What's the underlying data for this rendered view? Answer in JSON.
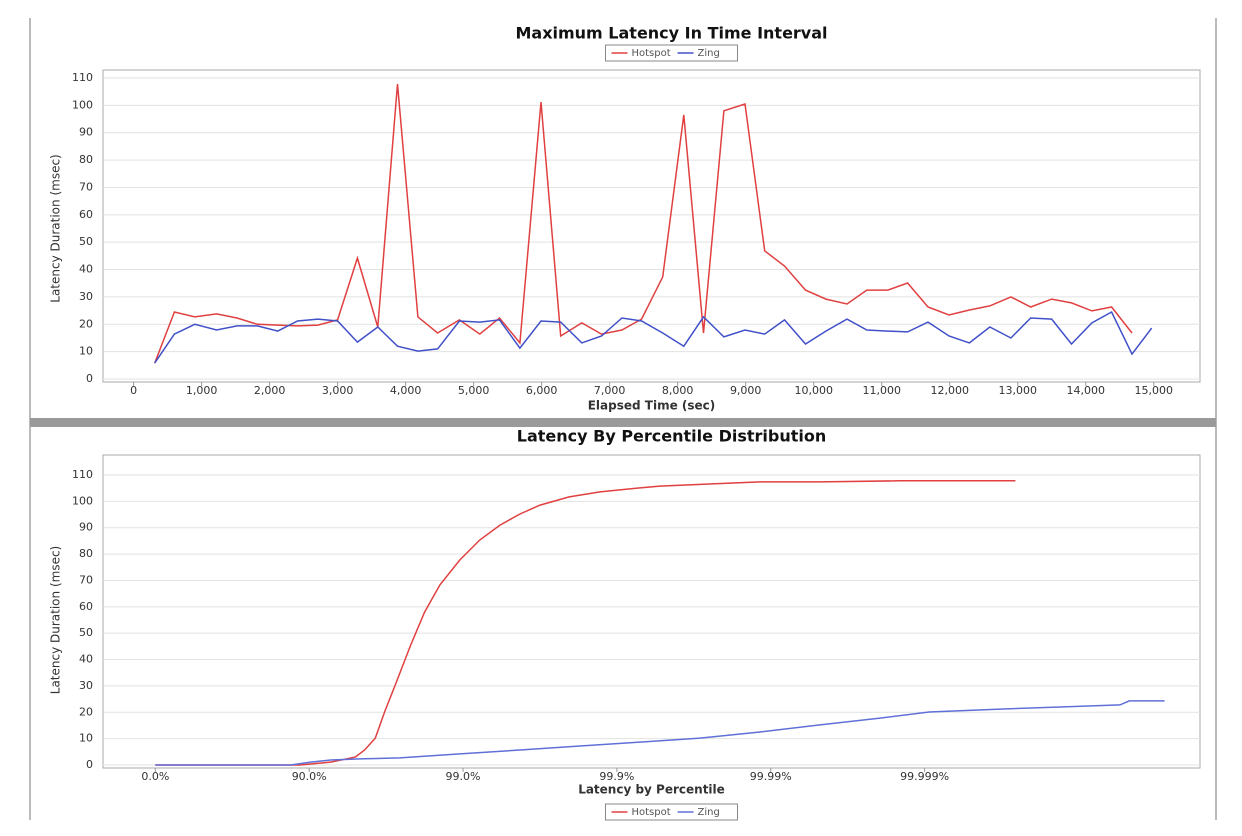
{
  "chart_data": [
    {
      "type": "line",
      "title": "Maximum Latency In Time Interval",
      "x_label": "Elapsed Time (sec)",
      "y_label": "Latency Duration (msec)",
      "x": [
        310,
        600,
        900,
        1220,
        1520,
        1820,
        2120,
        2410,
        2710,
        3000,
        3290,
        3590,
        3880,
        4180,
        4470,
        4790,
        5090,
        5380,
        5680,
        5990,
        6280,
        6590,
        6880,
        7180,
        7470,
        7780,
        8090,
        8380,
        8680,
        8990,
        9280,
        9570,
        9880,
        10180,
        10490,
        10780,
        11090,
        11380,
        11680,
        11990,
        12290,
        12590,
        12900,
        13190,
        13500,
        13790,
        14090,
        14380,
        14680,
        14970
      ],
      "series": [
        {
          "name": "Hotspot",
          "color": "#e04040",
          "values": [
            5.8,
            24.5,
            22.7,
            23.8,
            22.3,
            20,
            19.7,
            19.4,
            19.7,
            21.6,
            44.2,
            19,
            107.8,
            22.7,
            16.8,
            21.6,
            16.4,
            22.3,
            13.2,
            101.2,
            15.7,
            20.5,
            16.4,
            17.9,
            21.9,
            37.3,
            96.5,
            16.8,
            98,
            100.5,
            46.8,
            41.3,
            32.5,
            29.2,
            27.4,
            32.5,
            32.5,
            35.1,
            26.3,
            23.4,
            25.2,
            26.7,
            30,
            26.3,
            29.2,
            27.8,
            24.9,
            26.3,
            16.8,
            null
          ]
        },
        {
          "name": "Zing",
          "color": "#4050c8",
          "values": [
            5.8,
            16.4,
            20,
            17.9,
            19.4,
            19.4,
            17.5,
            21.2,
            21.9,
            21.2,
            13.5,
            19,
            12,
            10.2,
            11,
            21.2,
            20.8,
            21.6,
            11.3,
            21.2,
            20.8,
            13.2,
            15.7,
            22.3,
            21.2,
            16.8,
            12,
            22.7,
            15.4,
            17.9,
            16.4,
            21.6,
            12.8,
            17.5,
            21.9,
            17.9,
            17.5,
            17.2,
            20.8,
            15.7,
            13.2,
            19,
            15,
            22.3,
            21.9,
            12.8,
            20.5,
            24.5,
            9.1,
            18.6
          ]
        }
      ],
      "xlim": [
        -450,
        15680
      ],
      "ylim": [
        0,
        110
      ],
      "xticks": [
        0,
        {
          "value": 1000,
          "label": "1,000"
        },
        {
          "value": 2000,
          "label": "2,000"
        },
        {
          "value": 3000,
          "label": "3,000"
        },
        {
          "value": 4000,
          "label": "4,000"
        },
        {
          "value": 5000,
          "label": "5,000"
        },
        {
          "value": 6000,
          "label": "6,000"
        },
        {
          "value": 7000,
          "label": "7,000"
        },
        {
          "value": 8000,
          "label": "8,000"
        },
        {
          "value": 9000,
          "label": "9,000"
        },
        {
          "value": 10000,
          "label": "10,000"
        },
        {
          "value": 11000,
          "label": "11,000"
        },
        {
          "value": 12000,
          "label": "12,000"
        },
        {
          "value": 13000,
          "label": "13,000"
        },
        {
          "value": 14000,
          "label": "14,000"
        },
        {
          "value": 15000,
          "label": "15,000"
        }
      ],
      "yticks": [
        0,
        10,
        20,
        30,
        40,
        50,
        60,
        70,
        80,
        90,
        100,
        110
      ],
      "grid": true,
      "legend": "top"
    },
    {
      "type": "line",
      "title": "Latency By Percentile Distribution",
      "x_label": "Latency by Percentile",
      "y_label": "Latency Duration (msec)",
      "series": [
        {
          "name": "Hotspot",
          "color": "#e04040",
          "x": [
            0,
            0.94,
            1.14,
            1.3,
            1.36,
            1.43,
            1.49,
            1.56,
            1.66,
            1.75,
            1.85,
            1.98,
            2.11,
            2.24,
            2.37,
            2.5,
            2.69,
            2.89,
            3.15,
            3.28,
            3.6,
            3.93,
            4.32,
            4.84,
            5.59
          ],
          "values": [
            0,
            0,
            1.1,
            3,
            5.7,
            10.2,
            20.1,
            30.4,
            45.5,
            58,
            68.3,
            77.8,
            85.4,
            91,
            95.2,
            98.6,
            101.7,
            103.6,
            105.1,
            105.8,
            106.6,
            107.4,
            107.4,
            107.8,
            107.8
          ]
        },
        {
          "name": "Zing",
          "color": "#6070d8",
          "x": [
            0,
            0.88,
            1.01,
            1.14,
            1.33,
            1.59,
            1.98,
            2.37,
            2.76,
            3.15,
            3.54,
            3.93,
            4.32,
            4.71,
            5.03,
            5.49,
            5.88,
            6.27,
            6.33,
            6.56
          ],
          "values": [
            0,
            0,
            1.1,
            1.9,
            2.3,
            2.7,
            4.2,
            5.7,
            7.2,
            8.7,
            10.2,
            12.5,
            15.2,
            17.8,
            20.1,
            21.2,
            22,
            22.8,
            24.3,
            24.3
          ]
        }
      ],
      "xlim": [
        -0.34,
        6.79
      ],
      "ylim": [
        0,
        110
      ],
      "xticks": [
        {
          "value": 0,
          "label": "0.0%"
        },
        {
          "value": 1,
          "label": "90.0%"
        },
        {
          "value": 2,
          "label": "99.0%"
        },
        {
          "value": 3,
          "label": "99.9%"
        },
        {
          "value": 4,
          "label": "99.99%"
        },
        {
          "value": 5,
          "label": "99.999%"
        }
      ],
      "yticks": [
        0,
        10,
        20,
        30,
        40,
        50,
        60,
        70,
        80,
        90,
        100,
        110
      ],
      "grid": true,
      "legend": "bottom"
    }
  ]
}
